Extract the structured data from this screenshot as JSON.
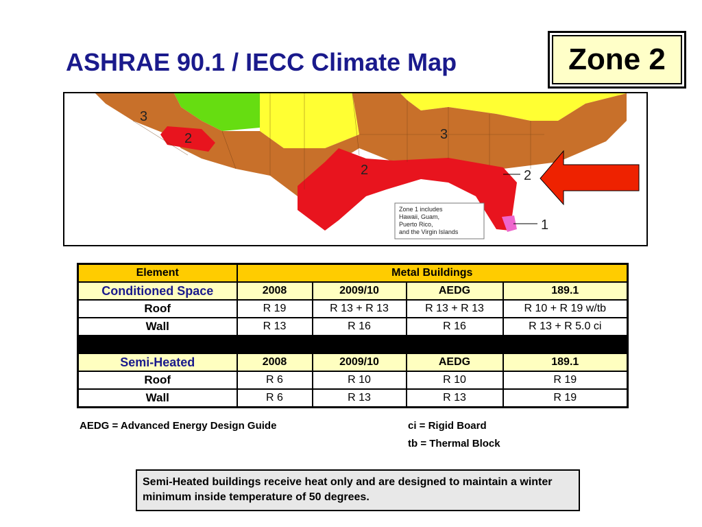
{
  "title": "ASHRAE 90.1 / IECC Climate Map",
  "zone_label": "Zone 2",
  "map": {
    "zone_numbers": [
      "3",
      "2",
      "2",
      "3",
      "2",
      "1"
    ],
    "legend_note": [
      "Zone 1 includes",
      "Hawaii, Guam,",
      "Puerto Rico,",
      "and the Virgin Islands"
    ]
  },
  "table": {
    "header": {
      "element": "Element",
      "metal": "Metal Buildings"
    },
    "cols": [
      "2008",
      "2009/10",
      "AEDG",
      "189.1"
    ],
    "conditioned": {
      "label": "Conditioned Space",
      "rows": [
        {
          "label": "Roof",
          "values": [
            "R 19",
            "R 13 + R 13",
            "R 13 + R 13",
            "R 10 + R 19 w/tb"
          ]
        },
        {
          "label": "Wall",
          "values": [
            "R 13",
            "R 16",
            "R 16",
            "R 13 + R 5.0 ci"
          ]
        }
      ]
    },
    "semi": {
      "label": "Semi-Heated",
      "rows": [
        {
          "label": "Roof",
          "values": [
            "R 6",
            "R 10",
            "R 10",
            "R 19"
          ]
        },
        {
          "label": "Wall",
          "values": [
            "R 6",
            "R 13",
            "R 13",
            "R 19"
          ]
        }
      ]
    }
  },
  "notes": {
    "aedg": "AEDG = Advanced Energy Design Guide",
    "ci": "ci = Rigid Board",
    "tb": "tb = Thermal Block"
  },
  "info": "Semi-Heated buildings receive heat only and are designed to maintain a winter minimum inside temperature of 50 degrees.",
  "colors": {
    "title": "#1a1a8c",
    "zone2": "#e8141e",
    "zone3": "#c8702a",
    "zone4": "#ffff00",
    "zone5": "#66dd11",
    "zone1": "#ee66cc",
    "arrow": "#ee2200"
  }
}
